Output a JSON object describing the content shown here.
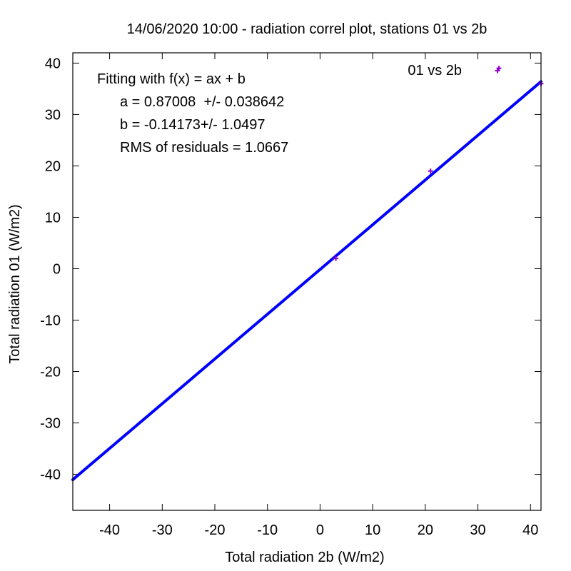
{
  "chart_data": {
    "type": "scatter",
    "title": "14/06/2020 10:00 - radiation correl plot, stations 01 vs 2b",
    "xlabel": "Total radiation 2b (W/m2)",
    "ylabel": "Total radiation 01 (W/m2)",
    "xlim": [
      -47,
      42
    ],
    "ylim": [
      -47,
      42
    ],
    "xticks": [
      -40,
      -30,
      -20,
      -10,
      0,
      10,
      20,
      30,
      40
    ],
    "yticks": [
      -40,
      -30,
      -20,
      -10,
      0,
      10,
      20,
      30,
      40
    ],
    "tick_labels_x": [
      "-40",
      "-30",
      "-20",
      "-10",
      "0",
      "10",
      "20",
      "30",
      "40"
    ],
    "tick_labels_y": [
      "-40",
      "-30",
      "-20",
      "-10",
      "0",
      "10",
      "20",
      "30",
      "40"
    ],
    "grid": false,
    "legend": {
      "position": "top-right",
      "entries": [
        "01 vs 2b"
      ]
    },
    "series": [
      {
        "name": "01 vs 2b",
        "color": "#9400d3",
        "marker": "+",
        "points": [
          [
            3,
            2
          ],
          [
            21,
            19
          ],
          [
            34,
            39
          ],
          [
            42,
            36
          ]
        ]
      }
    ],
    "fit": {
      "color": "#0000ff",
      "a": 0.87008,
      "b": -0.14173,
      "x_range": [
        -47,
        42
      ]
    },
    "annotations": [
      "Fitting with f(x) = ax + b",
      "a = 0.87008  +/- 0.038642",
      "b = -0.14173+/- 1.0497",
      "RMS of residuals = 1.0667"
    ]
  }
}
